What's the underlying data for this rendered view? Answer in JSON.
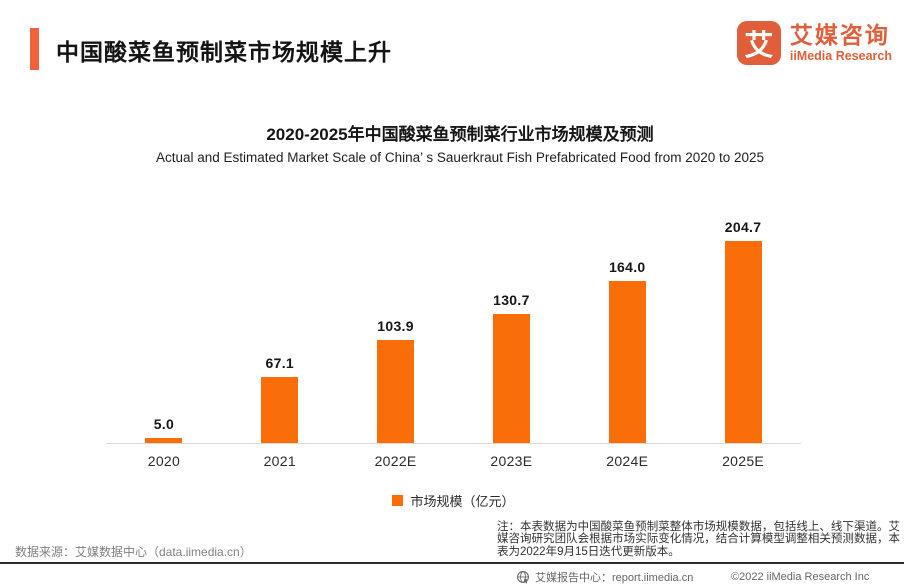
{
  "header": {
    "title": "中国酸菜鱼预制菜市场规模上升"
  },
  "logo": {
    "mark": "艾",
    "name_cn": "艾媒咨询",
    "name_en": "iiMedia Research"
  },
  "chart": {
    "title": "2020-2025年中国酸菜鱼预制菜行业市场规模及预测",
    "subtitle": "Actual and Estimated Market Scale of China’ s Sauerkraut Fish Prefabricated Food from 2020 to 2025",
    "legend": "市场规模（亿元）",
    "note": "注：本表数据为中国酸菜鱼预制菜整体市场规模数据，包括线上、线下渠道。艾媒咨询研究团队会根据市场实际变化情况，结合计算模型调整相关预测数据，本表为2022年9月15日迭代更新版本。"
  },
  "chart_data": {
    "type": "bar",
    "categories": [
      "2020",
      "2021",
      "2022E",
      "2023E",
      "2024E",
      "2025E"
    ],
    "values": [
      5.0,
      67.1,
      103.9,
      130.7,
      164.0,
      204.7
    ],
    "value_labels": [
      "5.0",
      "67.1",
      "103.9",
      "130.7",
      "164.0",
      "204.7"
    ],
    "title": "2020-2025年中国酸菜鱼预制菜行业市场规模及预测",
    "xlabel": "",
    "ylabel": "市场规模（亿元）",
    "ylim": [
      0,
      220
    ],
    "grid": false,
    "legend_position": "bottom"
  },
  "footer": {
    "source": "数据来源：艾媒数据中心（data.iimedia.cn）",
    "report_center": "艾媒报告中心：report.iimedia.cn",
    "copyright": "©2022  iiMedia Research  Inc"
  },
  "colors": {
    "bar": "#FA6E0A",
    "accent": "#F0613C",
    "logo": "#E05F3A"
  }
}
